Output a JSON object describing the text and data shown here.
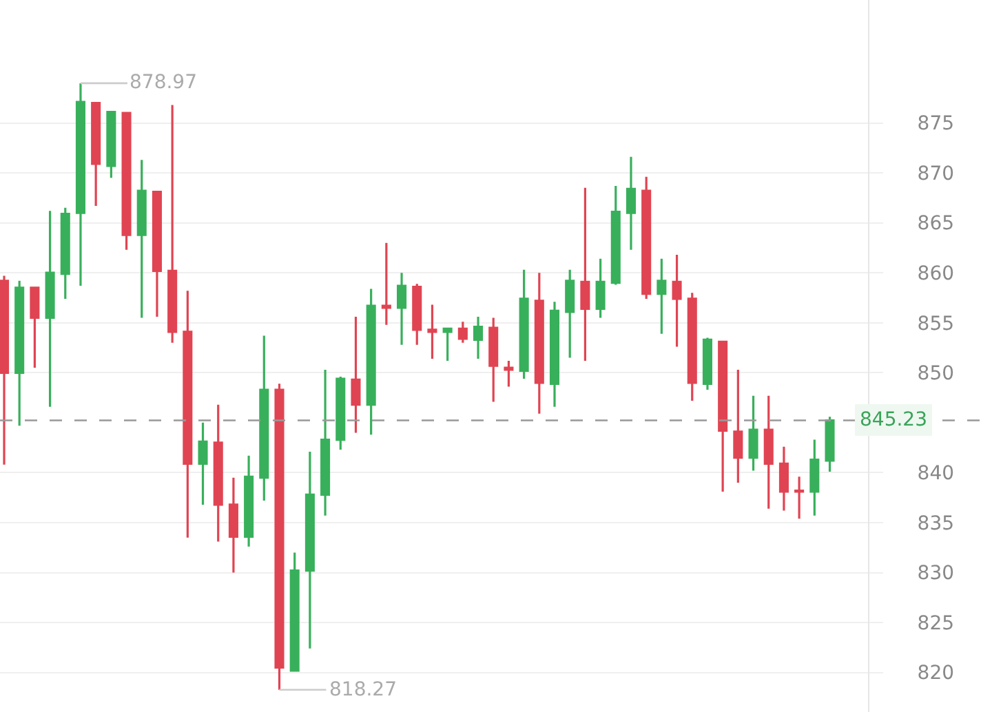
{
  "chart_data": {
    "type": "candlestick",
    "categories": [
      null,
      null,
      null,
      null,
      null,
      null,
      null,
      null,
      null,
      null,
      null,
      null,
      null,
      null,
      null,
      null,
      null,
      null,
      null,
      null,
      null,
      null,
      null,
      null,
      null,
      null,
      null,
      null,
      null,
      null,
      null,
      null,
      null,
      null,
      null,
      null,
      null,
      null,
      null,
      null,
      null,
      null,
      null,
      null,
      null,
      null,
      null,
      null,
      null,
      null,
      null,
      null,
      null,
      null,
      null
    ],
    "ohlc": [
      [
        859.2,
        859.7,
        840.8,
        850.0
      ],
      [
        850.0,
        859.2,
        844.7,
        858.5
      ],
      [
        858.5,
        858.6,
        850.5,
        855.5
      ],
      [
        855.5,
        866.2,
        846.6,
        860.0
      ],
      [
        859.9,
        866.5,
        857.4,
        865.9
      ],
      [
        866.0,
        878.97,
        858.7,
        877.1
      ],
      [
        877.0,
        877.1,
        866.7,
        870.9
      ],
      [
        870.7,
        876.1,
        869.5,
        876.1
      ],
      [
        876.0,
        876.1,
        862.3,
        863.8
      ],
      [
        863.8,
        871.3,
        855.5,
        868.2
      ],
      [
        868.1,
        868.1,
        855.6,
        860.2
      ],
      [
        860.2,
        876.8,
        853.0,
        854.1
      ],
      [
        854.1,
        858.2,
        833.5,
        840.9
      ],
      [
        840.9,
        845.0,
        836.8,
        843.1
      ],
      [
        843.0,
        846.8,
        833.1,
        836.8
      ],
      [
        836.8,
        839.5,
        830.0,
        833.6
      ],
      [
        833.6,
        841.7,
        832.6,
        839.6
      ],
      [
        839.5,
        853.7,
        837.2,
        848.3
      ],
      [
        848.3,
        848.9,
        818.27,
        820.5
      ],
      [
        820.2,
        832.0,
        820.1,
        830.2
      ],
      [
        830.2,
        842.1,
        822.4,
        837.8
      ],
      [
        837.8,
        850.3,
        835.7,
        843.3
      ],
      [
        843.3,
        849.6,
        842.3,
        849.4
      ],
      [
        849.3,
        855.6,
        844.0,
        846.8
      ],
      [
        846.8,
        858.4,
        843.8,
        856.7
      ],
      [
        856.7,
        863.0,
        854.8,
        856.5
      ],
      [
        856.5,
        860.0,
        852.8,
        858.7
      ],
      [
        858.6,
        858.9,
        852.8,
        854.3
      ],
      [
        854.3,
        856.8,
        851.4,
        854.1
      ],
      [
        854.1,
        854.5,
        851.2,
        854.4
      ],
      [
        854.4,
        855.1,
        853.0,
        853.4
      ],
      [
        853.3,
        855.6,
        851.4,
        854.6
      ],
      [
        854.5,
        855.5,
        847.1,
        850.7
      ],
      [
        850.5,
        851.2,
        848.6,
        850.3
      ],
      [
        850.2,
        860.3,
        849.4,
        857.4
      ],
      [
        857.2,
        860.0,
        845.9,
        849.0
      ],
      [
        848.9,
        857.1,
        846.6,
        856.2
      ],
      [
        856.1,
        860.3,
        851.5,
        859.2
      ],
      [
        859.1,
        868.5,
        851.2,
        856.4
      ],
      [
        856.4,
        861.4,
        855.5,
        859.1
      ],
      [
        859.0,
        868.7,
        858.8,
        866.1
      ],
      [
        866.0,
        871.6,
        862.3,
        868.4
      ],
      [
        868.2,
        869.6,
        857.4,
        857.9
      ],
      [
        857.9,
        861.4,
        853.9,
        859.2
      ],
      [
        859.1,
        861.8,
        852.6,
        857.4
      ],
      [
        857.4,
        858.0,
        847.2,
        849.0
      ],
      [
        848.9,
        853.5,
        848.3,
        853.3
      ],
      [
        853.1,
        853.1,
        838.1,
        844.2
      ],
      [
        844.1,
        850.3,
        839.0,
        841.5
      ],
      [
        841.5,
        847.7,
        840.2,
        844.3
      ],
      [
        844.3,
        847.7,
        836.4,
        840.9
      ],
      [
        840.9,
        842.6,
        836.2,
        838.1
      ],
      [
        838.2,
        839.6,
        835.4,
        838.1
      ],
      [
        838.1,
        843.3,
        835.7,
        841.3
      ],
      [
        841.2,
        845.6,
        840.1,
        845.23
      ]
    ],
    "colors": [
      "#e04452",
      "#38b05b",
      "#e04452",
      "#38b05b",
      "#38b05b",
      "#38b05b",
      "#e04452",
      "#38b05b",
      "#e04452",
      "#38b05b",
      "#e04452",
      "#e04452",
      "#e04452",
      "#38b05b",
      "#e04452",
      "#e04452",
      "#38b05b",
      "#38b05b",
      "#e04452",
      "#38b05b",
      "#38b05b",
      "#38b05b",
      "#38b05b",
      "#e04452",
      "#38b05b",
      "#e04452",
      "#38b05b",
      "#e04452",
      "#e04452",
      "#38b05b",
      "#e04452",
      "#38b05b",
      "#e04452",
      "#e04452",
      "#38b05b",
      "#e04452",
      "#38b05b",
      "#38b05b",
      "#e04452",
      "#38b05b",
      "#38b05b",
      "#38b05b",
      "#e04452",
      "#38b05b",
      "#e04452",
      "#e04452",
      "#38b05b",
      "#e04452",
      "#e04452",
      "#38b05b",
      "#e04452",
      "#e04452",
      "#e04452",
      "#38b05b",
      "#38b05b"
    ],
    "ylim": [
      816.05,
      887.3
    ],
    "yticks": [
      820,
      825,
      830,
      835,
      840,
      850,
      855,
      860,
      865,
      870,
      875
    ],
    "grid": "y",
    "tick_labels": "y",
    "ref_lines": [
      {
        "axis": "y",
        "value": 845.23,
        "label": "845.23",
        "color": "#999999",
        "line_style": "dashed"
      }
    ],
    "annotations": [
      "878.97",
      "818.27"
    ]
  }
}
